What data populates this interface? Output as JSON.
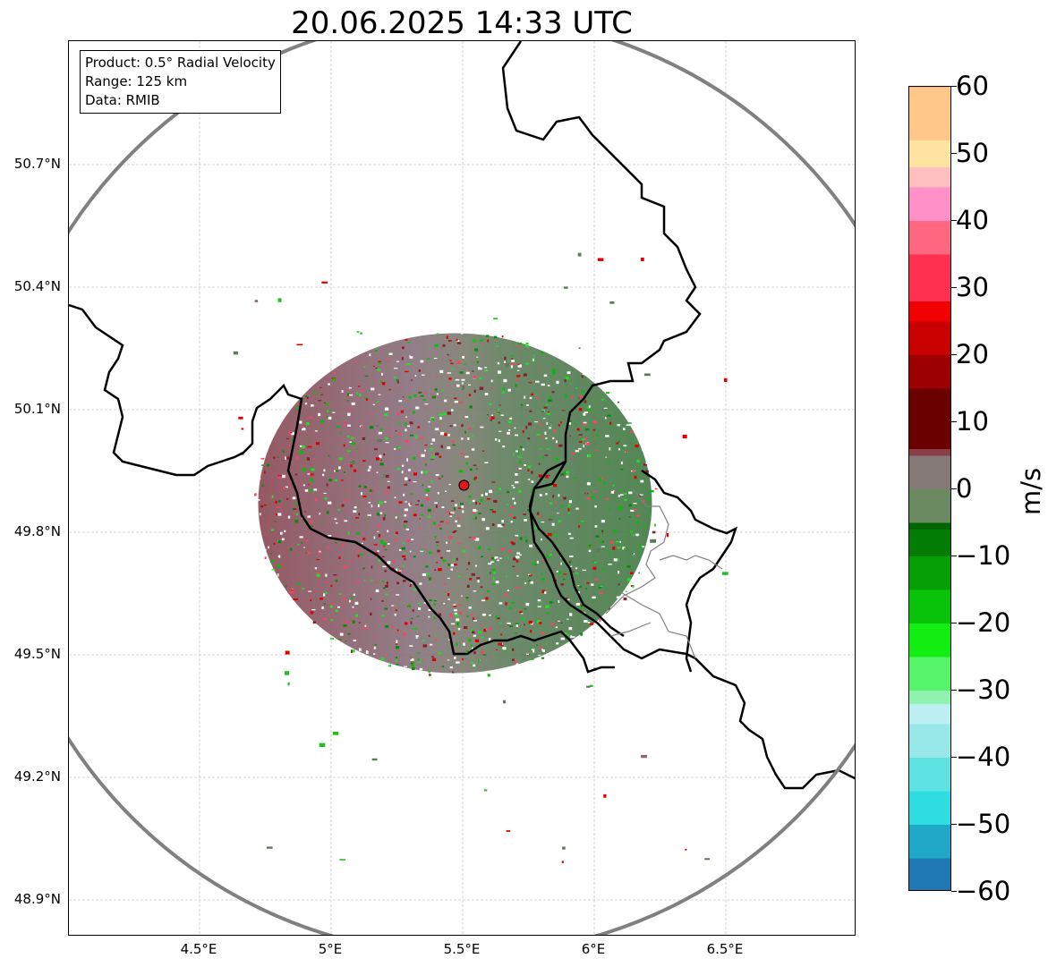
{
  "title": "20.06.2025 14:33 UTC",
  "info_box": {
    "product": "Product: 0.5° Radial Velocity",
    "range": "Range: 125 km",
    "data": "Data: RMIB"
  },
  "axes": {
    "lat_ticks": [
      {
        "value": 50.7,
        "label": "50.7°N"
      },
      {
        "value": 50.4,
        "label": "50.4°N"
      },
      {
        "value": 50.1,
        "label": "50.1°N"
      },
      {
        "value": 49.8,
        "label": "49.8°N"
      },
      {
        "value": 49.5,
        "label": "49.5°N"
      },
      {
        "value": 49.2,
        "label": "49.2°N"
      },
      {
        "value": 48.9,
        "label": "48.9°N"
      }
    ],
    "lon_ticks": [
      {
        "value": 4.5,
        "label": "4.5°E"
      },
      {
        "value": 5.0,
        "label": "5°E"
      },
      {
        "value": 5.5,
        "label": "5.5°E"
      },
      {
        "value": 6.0,
        "label": "6°E"
      },
      {
        "value": 6.5,
        "label": "6.5°E"
      }
    ],
    "lon_range": [
      4.0,
      7.0
    ],
    "lat_range": [
      48.8,
      51.0
    ],
    "grid": true
  },
  "radar": {
    "lon": 5.505,
    "lat": 49.915,
    "range_km": 125,
    "marker_color": "#e8141e",
    "range_ring_color": "#808080"
  },
  "colorbar": {
    "label": "m/s",
    "min": -60,
    "max": 60,
    "ticks": [
      "60",
      "50",
      "40",
      "30",
      "20",
      "10",
      "0",
      "−10",
      "−20",
      "−30",
      "−40",
      "−50",
      "−60"
    ],
    "stops": [
      {
        "v": -60,
        "c": "#1f77b4"
      },
      {
        "v": -55,
        "c": "#1fa8c8"
      },
      {
        "v": -50,
        "c": "#2fdce0"
      },
      {
        "v": -45,
        "c": "#5ee2e2"
      },
      {
        "v": -40,
        "c": "#98e8ea"
      },
      {
        "v": -35,
        "c": "#bdeef2"
      },
      {
        "v": -32,
        "c": "#8ff2ae"
      },
      {
        "v": -30,
        "c": "#55f46a"
      },
      {
        "v": -25,
        "c": "#12ee12"
      },
      {
        "v": -20,
        "c": "#0ac40a"
      },
      {
        "v": -15,
        "c": "#06a006"
      },
      {
        "v": -10,
        "c": "#037d03"
      },
      {
        "v": -6,
        "c": "#006400"
      },
      {
        "v": -5,
        "c": "#6c8a62"
      },
      {
        "v": 0,
        "c": "#857a78"
      },
      {
        "v": 5,
        "c": "#8a3f48"
      },
      {
        "v": 6,
        "c": "#6a0000"
      },
      {
        "v": 15,
        "c": "#9c0000"
      },
      {
        "v": 20,
        "c": "#c80000"
      },
      {
        "v": 25,
        "c": "#f00000"
      },
      {
        "v": 28,
        "c": "#ff3050"
      },
      {
        "v": 35,
        "c": "#ff6880"
      },
      {
        "v": 40,
        "c": "#ff90c8"
      },
      {
        "v": 45,
        "c": "#ffbfc0"
      },
      {
        "v": 48,
        "c": "#ffe3a0"
      },
      {
        "v": 52,
        "c": "#ffc888"
      },
      {
        "v": 60,
        "c": "#ff9a50"
      }
    ]
  },
  "colors": {
    "border": "#000000",
    "regional_border": "#808080",
    "receding": "#8a5a62",
    "approaching": "#5c7a58"
  }
}
